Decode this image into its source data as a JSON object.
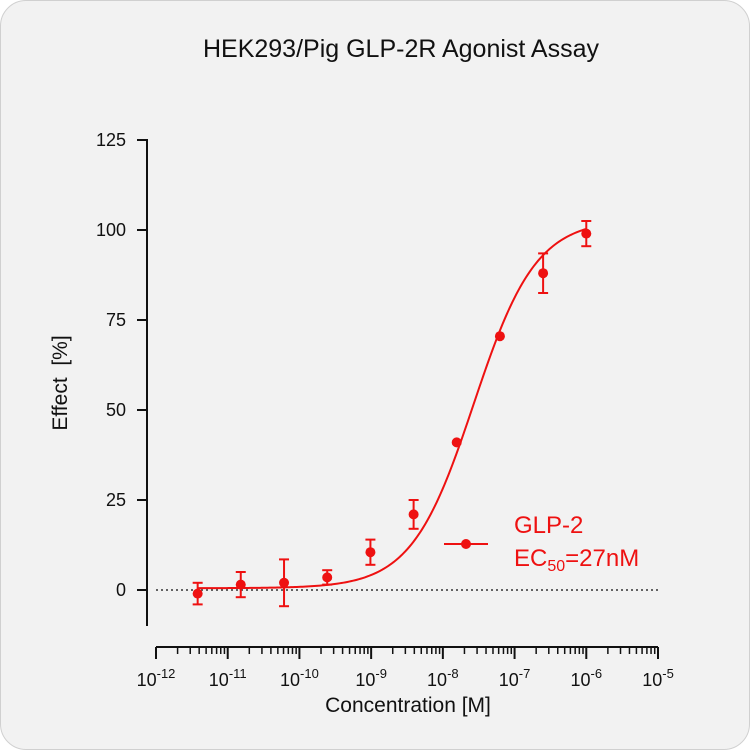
{
  "chart_data": {
    "type": "scatter",
    "title": "HEK293/Pig GLP-2R Agonist Assay",
    "xlabel": "Concentration [M]",
    "ylabel": "Effect  [%]",
    "x_scale": "log",
    "xlim": [
      1e-12,
      1e-05
    ],
    "ylim": [
      -10,
      125
    ],
    "x_tick_labels": [
      {
        "base": "10",
        "exp": "-12"
      },
      {
        "base": "10",
        "exp": "-11"
      },
      {
        "base": "10",
        "exp": "-10"
      },
      {
        "base": "10",
        "exp": "-9"
      },
      {
        "base": "10",
        "exp": "-8"
      },
      {
        "base": "10",
        "exp": "-7"
      },
      {
        "base": "10",
        "exp": "-6"
      },
      {
        "base": "10",
        "exp": "-5"
      }
    ],
    "y_ticks": [
      0,
      25,
      50,
      75,
      100,
      125
    ],
    "y_tick_labels": [
      "0",
      "25",
      "50",
      "75",
      "100",
      "125"
    ],
    "reference_line": {
      "y": 0,
      "style": "dotted"
    },
    "color": "#ee1111",
    "series": [
      {
        "name": "GLP-2",
        "x": [
          3.81e-12,
          1.52e-11,
          6.1e-11,
          2.44e-10,
          9.77e-10,
          3.91e-09,
          1.56e-08,
          6.25e-08,
          2.5e-07,
          1e-06
        ],
        "y": [
          -1,
          1.5,
          2,
          3.5,
          10.5,
          21,
          41,
          70.5,
          88,
          99
        ],
        "error": [
          3,
          3.5,
          6.5,
          2,
          3.5,
          4,
          0,
          0,
          5.5,
          3.5
        ]
      }
    ],
    "fit": {
      "bottom": 0.5,
      "top": 103,
      "ec50": 2.7e-08,
      "hill": 1.0
    },
    "legend": {
      "position": "right-middle",
      "series_name": "GLP-2",
      "ec50_prefix": "EC",
      "ec50_sub": "50",
      "ec50_value": "=27nM"
    }
  }
}
